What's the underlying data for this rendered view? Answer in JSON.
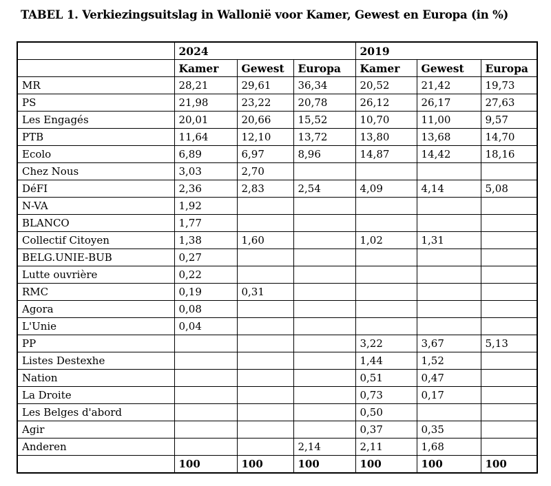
{
  "title": "TABEL 1. Verkiezingsuitslag in Wallonië voor Kamer, Gewest en Europa (in %)",
  "colors": {
    "background": "#ffffff",
    "border": "#000000",
    "text": "#000000"
  },
  "table": {
    "year_groups": [
      {
        "label": "2024"
      },
      {
        "label": "2019"
      }
    ],
    "column_headers": [
      "Kamer",
      "Gewest",
      "Europa",
      "Kamer",
      "Gewest",
      "Europa"
    ],
    "rows": [
      {
        "party": "MR",
        "values": [
          "28,21",
          "29,61",
          "36,34",
          "20,52",
          "21,42",
          "19,73"
        ]
      },
      {
        "party": "PS",
        "values": [
          "21,98",
          "23,22",
          "20,78",
          "26,12",
          "26,17",
          "27,63"
        ]
      },
      {
        "party": "Les Engagés",
        "values": [
          "20,01",
          "20,66",
          "15,52",
          "10,70",
          "11,00",
          "9,57"
        ]
      },
      {
        "party": "PTB",
        "values": [
          "11,64",
          "12,10",
          "13,72",
          "13,80",
          "13,68",
          "14,70"
        ]
      },
      {
        "party": "Ecolo",
        "values": [
          "6,89",
          "6,97",
          "8,96",
          "14,87",
          "14,42",
          "18,16"
        ]
      },
      {
        "party": "Chez Nous",
        "values": [
          "3,03",
          "2,70",
          "",
          "",
          "",
          ""
        ]
      },
      {
        "party": "DéFI",
        "values": [
          "2,36",
          "2,83",
          "2,54",
          "4,09",
          "4,14",
          "5,08"
        ]
      },
      {
        "party": "N-VA",
        "values": [
          "1,92",
          "",
          "",
          "",
          "",
          ""
        ]
      },
      {
        "party": "BLANCO",
        "values": [
          "1,77",
          "",
          "",
          "",
          "",
          ""
        ]
      },
      {
        "party": "Collectif Citoyen",
        "values": [
          "1,38",
          "1,60",
          "",
          "1,02",
          "1,31",
          ""
        ]
      },
      {
        "party": "BELG.UNIE-BUB",
        "values": [
          "0,27",
          "",
          "",
          "",
          "",
          ""
        ]
      },
      {
        "party": "Lutte ouvrière",
        "values": [
          "0,22",
          "",
          "",
          "",
          "",
          ""
        ]
      },
      {
        "party": "RMC",
        "values": [
          "0,19",
          "0,31",
          "",
          "",
          "",
          ""
        ]
      },
      {
        "party": "Agora",
        "values": [
          "0,08",
          "",
          "",
          "",
          "",
          ""
        ]
      },
      {
        "party": "L'Unie",
        "values": [
          "0,04",
          "",
          "",
          "",
          "",
          ""
        ]
      },
      {
        "party": "PP",
        "values": [
          "",
          "",
          "",
          "3,22",
          "3,67",
          "5,13"
        ]
      },
      {
        "party": "Listes Destexhe",
        "values": [
          "",
          "",
          "",
          "1,44",
          "1,52",
          ""
        ]
      },
      {
        "party": "Nation",
        "values": [
          "",
          "",
          "",
          "0,51",
          "0,47",
          ""
        ]
      },
      {
        "party": "La Droite",
        "values": [
          "",
          "",
          "",
          "0,73",
          "0,17",
          ""
        ]
      },
      {
        "party": "Les Belges d'abord",
        "values": [
          "",
          "",
          "",
          "0,50",
          "",
          ""
        ]
      },
      {
        "party": "Agir",
        "values": [
          "",
          "",
          "",
          "0,37",
          "0,35",
          ""
        ]
      },
      {
        "party": "Anderen",
        "values": [
          "",
          "",
          "2,14",
          "2,11",
          "1,68",
          ""
        ]
      }
    ],
    "total_row": {
      "party": "",
      "values": [
        "100",
        "100",
        "100",
        "100",
        "100",
        "100"
      ]
    }
  }
}
